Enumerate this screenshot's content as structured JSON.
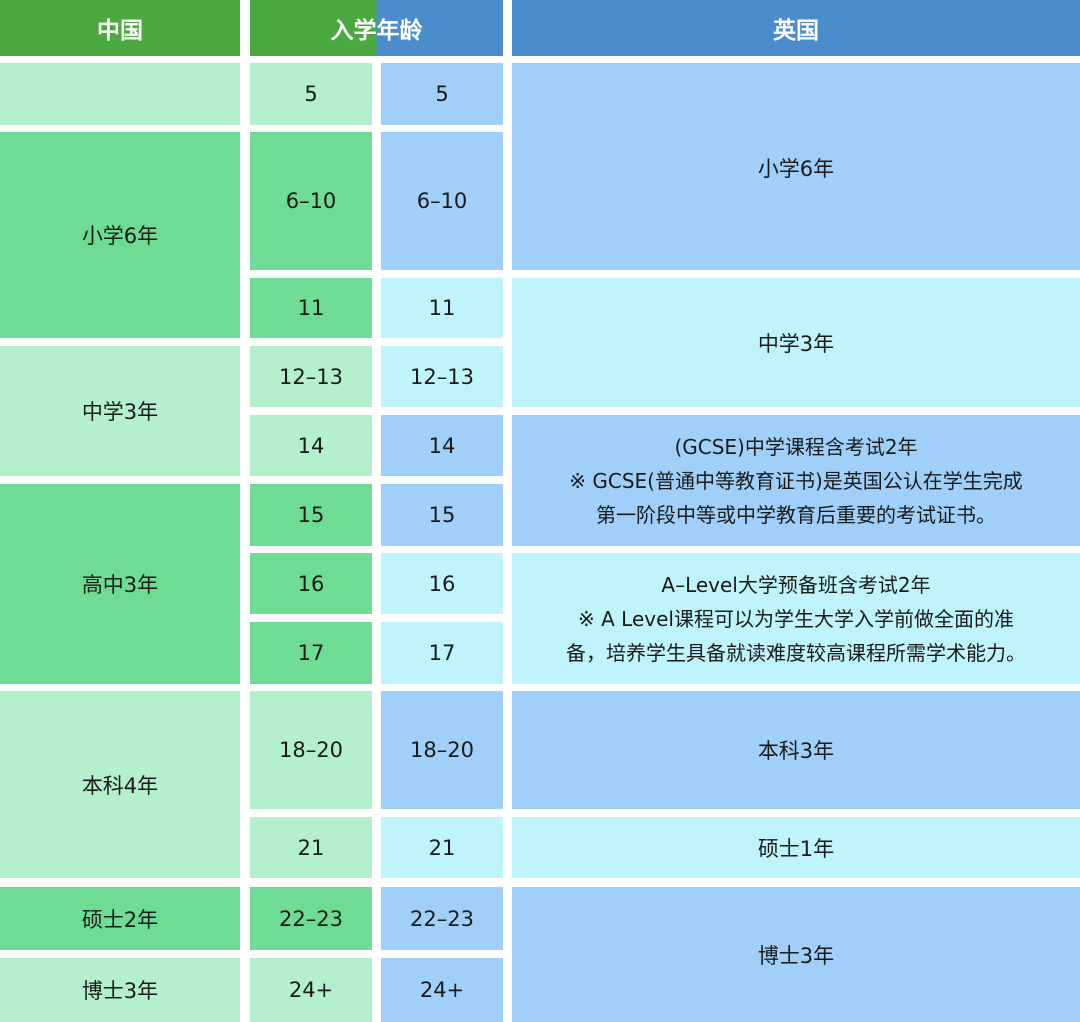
{
  "header": {
    "china": "中国",
    "age": "入学年龄",
    "uk": "英国"
  },
  "colors": {
    "header_green": "#4aaa40",
    "header_blue": "#4a8ccc",
    "light_green": "#b4f0cc",
    "medium_green": "#6edc94",
    "blue": "#a0d0fa",
    "light_cyan": "#c0f4fc"
  },
  "ages": [
    "5",
    "6–10",
    "11",
    "12–13",
    "14",
    "15",
    "16",
    "17",
    "18–20",
    "21",
    "22–23",
    "24+"
  ],
  "china": [
    "",
    "小学6年",
    "中学3年",
    "高中3年",
    "本科4年",
    "硕士2年",
    "博士3年"
  ],
  "uk": {
    "primary": "小学6年",
    "secondary": "中学3年",
    "gcse": {
      "title": "(GCSE)中学课程含考试2年",
      "note_1": "※ GCSE(普通中等教育证书)是英国公认在学生完成",
      "note_2": "第一阶段中等或中学教育后重要的考试证书。"
    },
    "alevel": {
      "title": "A–Level大学预备班含考试2年",
      "note_1": "※ A Level课程可以为学生大学入学前做全面的准",
      "note_2": "备，培养学生具备就读难度较高课程所需学术能力。"
    },
    "bachelor": "本科3年",
    "master": "硕士1年",
    "phd": "博士3年"
  }
}
